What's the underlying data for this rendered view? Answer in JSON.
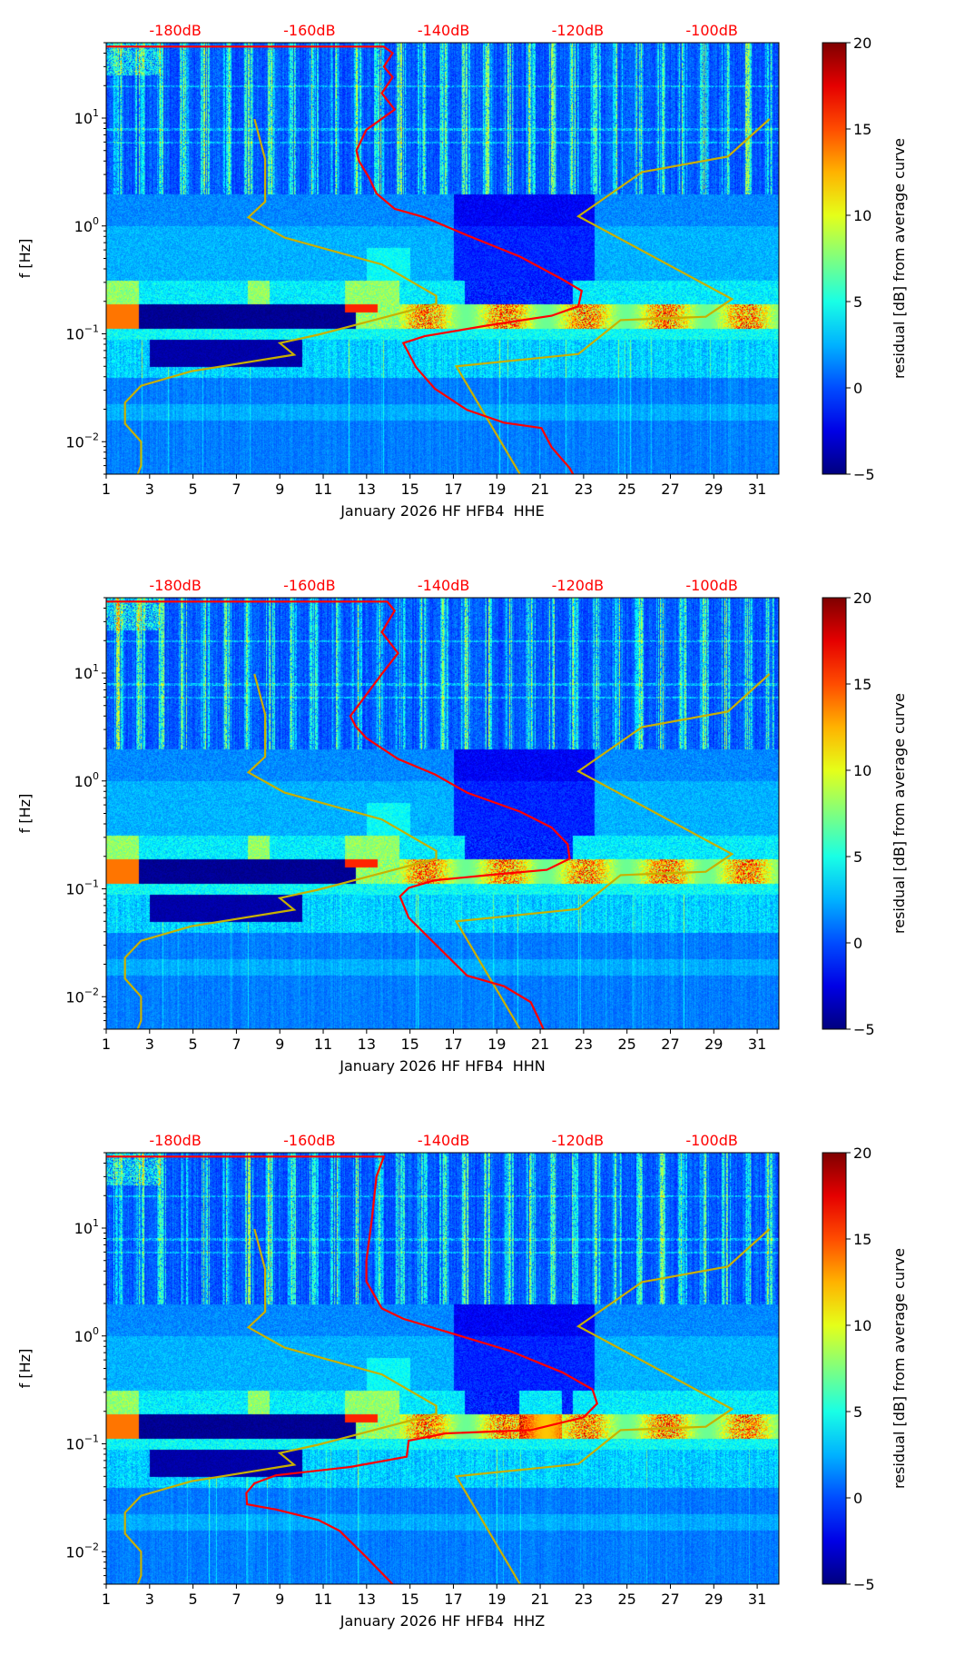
{
  "chart_data": [
    {
      "type": "heatmap",
      "xlabel": "January 2026 HF HFB4  HHE",
      "ylabel": "f [Hz]",
      "colorbar_label": "residual [dB] from average curve",
      "red_curve_db_vs_freq": [
        [
          -190.3,
          46
        ],
        [
          -148.9,
          46
        ],
        [
          -147.6,
          40
        ],
        [
          -148.9,
          30
        ],
        [
          -147.6,
          24
        ],
        [
          -149.2,
          17
        ],
        [
          -147.3,
          12
        ],
        [
          -151.5,
          7.8
        ],
        [
          -153.0,
          5
        ],
        [
          -152.6,
          4
        ],
        [
          -151.1,
          2.8
        ],
        [
          -150.0,
          2.0
        ],
        [
          -147.3,
          1.44
        ],
        [
          -142.8,
          1.2
        ],
        [
          -136.5,
          0.82
        ],
        [
          -128.6,
          0.52
        ],
        [
          -122.3,
          0.32
        ],
        [
          -119.4,
          0.25
        ],
        [
          -119.9,
          0.18
        ],
        [
          -123.9,
          0.147
        ],
        [
          -133.3,
          0.12
        ],
        [
          -142.8,
          0.095
        ],
        [
          -146.0,
          0.082
        ],
        [
          -144.1,
          0.049
        ],
        [
          -141.3,
          0.031
        ],
        [
          -136.5,
          0.0197
        ],
        [
          -131.0,
          0.015
        ],
        [
          -125.4,
          0.0134
        ],
        [
          -123.9,
          0.0089
        ],
        [
          -121.2,
          0.0057
        ],
        [
          -120.7,
          0.005
        ]
      ]
    },
    {
      "type": "heatmap",
      "xlabel": "January 2026 HF HFB4  HHN",
      "ylabel": "f [Hz]",
      "colorbar_label": "residual [dB] from average curve",
      "red_curve_db_vs_freq": [
        [
          -190.3,
          46
        ],
        [
          -148.4,
          46
        ],
        [
          -147.3,
          37.8
        ],
        [
          -149.2,
          24
        ],
        [
          -146.8,
          15.3
        ],
        [
          -149.2,
          9.8
        ],
        [
          -153.9,
          4
        ],
        [
          -153.1,
          3.2
        ],
        [
          -151.5,
          2.5
        ],
        [
          -146.8,
          1.6
        ],
        [
          -141.3,
          1.15
        ],
        [
          -136.5,
          0.78
        ],
        [
          -128.6,
          0.52
        ],
        [
          -123.9,
          0.37
        ],
        [
          -121.5,
          0.26
        ],
        [
          -121.2,
          0.19
        ],
        [
          -124.6,
          0.15
        ],
        [
          -133.3,
          0.134
        ],
        [
          -141.3,
          0.12
        ],
        [
          -145.2,
          0.102
        ],
        [
          -146.5,
          0.085
        ],
        [
          -145.2,
          0.054
        ],
        [
          -141.3,
          0.031
        ],
        [
          -136.5,
          0.0157
        ],
        [
          -131.0,
          0.0125
        ],
        [
          -127.0,
          0.0089
        ],
        [
          -125.1,
          0.005
        ]
      ]
    },
    {
      "type": "heatmap",
      "xlabel": "January 2026 HF HFB4  HHZ",
      "ylabel": "f [Hz]",
      "colorbar_label": "residual [dB] from average curve",
      "red_curve_db_vs_freq": [
        [
          -190.3,
          46
        ],
        [
          -148.9,
          46
        ],
        [
          -150.0,
          30
        ],
        [
          -150.7,
          12
        ],
        [
          -151.5,
          5
        ],
        [
          -151.5,
          3.2
        ],
        [
          -149.2,
          1.8
        ],
        [
          -146.0,
          1.44
        ],
        [
          -139.7,
          1.1
        ],
        [
          -130.2,
          0.73
        ],
        [
          -122.3,
          0.46
        ],
        [
          -117.8,
          0.32
        ],
        [
          -117.1,
          0.236
        ],
        [
          -119.1,
          0.176
        ],
        [
          -127.0,
          0.134
        ],
        [
          -139.7,
          0.125
        ],
        [
          -145.2,
          0.107
        ],
        [
          -145.5,
          0.076
        ],
        [
          -153.9,
          0.061
        ],
        [
          -165.0,
          0.051
        ],
        [
          -168.2,
          0.043
        ],
        [
          -169.4,
          0.035
        ],
        [
          -169.3,
          0.0275
        ],
        [
          -165.0,
          0.0246
        ],
        [
          -158.7,
          0.0197
        ],
        [
          -155.5,
          0.0156
        ],
        [
          -151.5,
          0.0089
        ],
        [
          -147.6,
          0.005
        ]
      ]
    }
  ],
  "shared": {
    "xlim_day": [
      1,
      32
    ],
    "xticks_day": [
      "1",
      "3",
      "5",
      "7",
      "9",
      "11",
      "13",
      "15",
      "17",
      "19",
      "21",
      "23",
      "25",
      "27",
      "29",
      "31"
    ],
    "top_axis_db_lim": [
      -190.3,
      -90
    ],
    "top_axis_ticks": [
      {
        "db": -180,
        "label": "-180dB"
      },
      {
        "db": -160,
        "label": "-160dB"
      },
      {
        "db": -140,
        "label": "-140dB"
      },
      {
        "db": -120,
        "label": "-120dB"
      },
      {
        "db": -100,
        "label": "-100dB"
      }
    ],
    "ylim_hz": [
      0.005,
      50
    ],
    "yscale": "log",
    "yticks": [
      {
        "exp": "1"
      },
      {
        "exp": "0"
      },
      {
        "exp": "−1"
      },
      {
        "exp": "−2"
      }
    ],
    "ytick_base": "10",
    "colorbar_range": [
      -5,
      20
    ],
    "colorbar_ticks": [
      "20",
      "15",
      "10",
      "5",
      "0",
      "−5"
    ],
    "colormap": "jet",
    "nlnm_db_vs_freq": [
      [
        -168.2,
        9.8
      ],
      [
        -166.6,
        4.15
      ],
      [
        -166.6,
        1.68
      ],
      [
        -169.1,
        1.2
      ],
      [
        -163.7,
        0.78
      ],
      [
        -149.2,
        0.44
      ],
      [
        -141.1,
        0.225
      ],
      [
        -141.1,
        0.19
      ],
      [
        -158.7,
        0.098
      ],
      [
        -164.4,
        0.082
      ],
      [
        -162.3,
        0.064
      ],
      [
        -177.6,
        0.045
      ],
      [
        -185.1,
        0.033
      ],
      [
        -187.5,
        0.023
      ],
      [
        -187.5,
        0.0147
      ],
      [
        -185.1,
        0.01
      ],
      [
        -185.1,
        0.006
      ],
      [
        -185.6,
        0.005
      ]
    ],
    "nhnm_db_vs_freq": [
      [
        -91.4,
        9.8
      ],
      [
        -97.6,
        4.4
      ],
      [
        -110.4,
        3.16
      ],
      [
        -119.9,
        1.23
      ],
      [
        -97.0,
        0.21
      ],
      [
        -100.9,
        0.144
      ],
      [
        -113.6,
        0.134
      ],
      [
        -119.9,
        0.065
      ],
      [
        -138.1,
        0.05
      ],
      [
        -128.6,
        0.005
      ]
    ],
    "colors": {
      "median_curve": "#ff0000",
      "noise_models": "#c8b000",
      "top_labels": "#ff0000"
    }
  }
}
